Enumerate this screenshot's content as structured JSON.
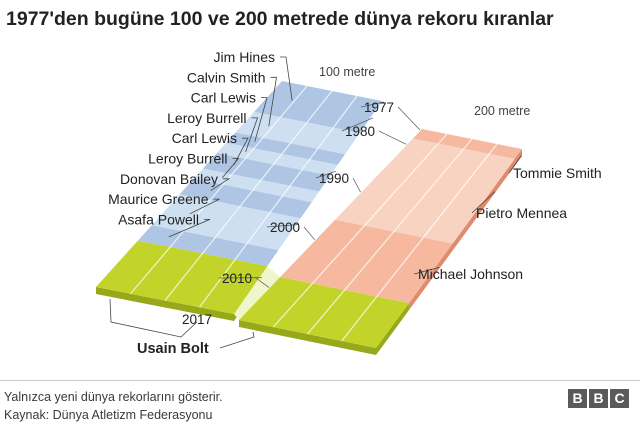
{
  "title": "1977'den bugüne 100 ve 200 metrede dünya rekoru kıranlar",
  "footer": {
    "note": "Yalnızca yeni dünya rekorlarını gösterir.",
    "source": "Kaynak: Dünya Atletizm Federasyonu",
    "logo_letters": [
      "B",
      "B",
      "C"
    ]
  },
  "colors": {
    "m100": "#aec6e4",
    "m100_light": "#cddff1",
    "m100_band": "#99b6da",
    "m200": "#f6b9a0",
    "m200_light": "#f9d3c2",
    "m200_band": "#ee9e84",
    "m200_side": "#e08a6e",
    "bolt": "#c2d42a",
    "bolt_side": "#97a81b",
    "gap": "#eff6cc",
    "text": "#222222"
  },
  "chart_data": {
    "type": "timeline",
    "year_range": [
      1977,
      2017
    ],
    "year_ticks": [
      1977,
      1980,
      1990,
      2000,
      2010,
      2017
    ],
    "series": [
      {
        "name": "100 metre",
        "record_holders": [
          {
            "name": "Jim Hines",
            "from": 1977
          },
          {
            "name": "Calvin Smith",
            "from": 1983
          },
          {
            "name": "Carl Lewis",
            "from": 1987
          },
          {
            "name": "Leroy Burrell",
            "from": 1989
          },
          {
            "name": "Carl Lewis",
            "from": 1991
          },
          {
            "name": "Leroy Burrell",
            "from": 1994
          },
          {
            "name": "Donovan Bailey",
            "from": 1996
          },
          {
            "name": "Maurice Greene",
            "from": 1999
          },
          {
            "name": "Asafa Powell",
            "from": 2005
          },
          {
            "name": "Usain Bolt",
            "from": 2008
          }
        ]
      },
      {
        "name": "200 metre",
        "record_holders": [
          {
            "name": "Tommie Smith",
            "from": 1977
          },
          {
            "name": "Pietro Mennea",
            "from": 1979
          },
          {
            "name": "Michael Johnson",
            "from": 1996
          },
          {
            "name": "Usain Bolt",
            "from": 2008
          }
        ]
      }
    ],
    "shared_holder": "Usain Bolt"
  }
}
